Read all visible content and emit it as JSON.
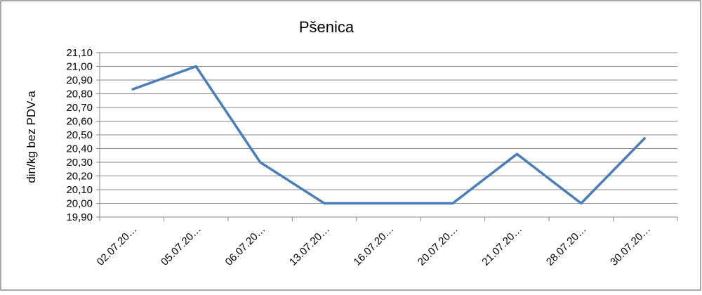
{
  "chart_data": {
    "type": "line",
    "title": "Pšenica",
    "y_label": "din/kg bez PDV-a",
    "categories": [
      "02.07.20…",
      "05.07.20…",
      "06.07.20…",
      "13.07.20…",
      "16.07.20…",
      "20.07.20…",
      "21.07.20…",
      "28.07.20…",
      "30.07.20…"
    ],
    "series": [
      {
        "name": "Pšenica",
        "color": "#4a7ebb",
        "values": [
          20.83,
          21.0,
          20.3,
          20.0,
          20.0,
          20.0,
          20.36,
          20.0,
          20.48
        ]
      }
    ],
    "ylim": [
      19.9,
      21.1
    ],
    "yticks": [
      {
        "value": 19.9,
        "label": "19,90"
      },
      {
        "value": 20.0,
        "label": "20,00"
      },
      {
        "value": 20.1,
        "label": "20,10"
      },
      {
        "value": 20.2,
        "label": "20,20"
      },
      {
        "value": 20.3,
        "label": "20,30"
      },
      {
        "value": 20.4,
        "label": "20,40"
      },
      {
        "value": 20.5,
        "label": "20,50"
      },
      {
        "value": 20.6,
        "label": "20,60"
      },
      {
        "value": 20.7,
        "label": "20,70"
      },
      {
        "value": 20.8,
        "label": "20,80"
      },
      {
        "value": 20.9,
        "label": "20,90"
      },
      {
        "value": 21.0,
        "label": "21,00"
      },
      {
        "value": 21.1,
        "label": "21,10"
      }
    ],
    "grid": true
  }
}
